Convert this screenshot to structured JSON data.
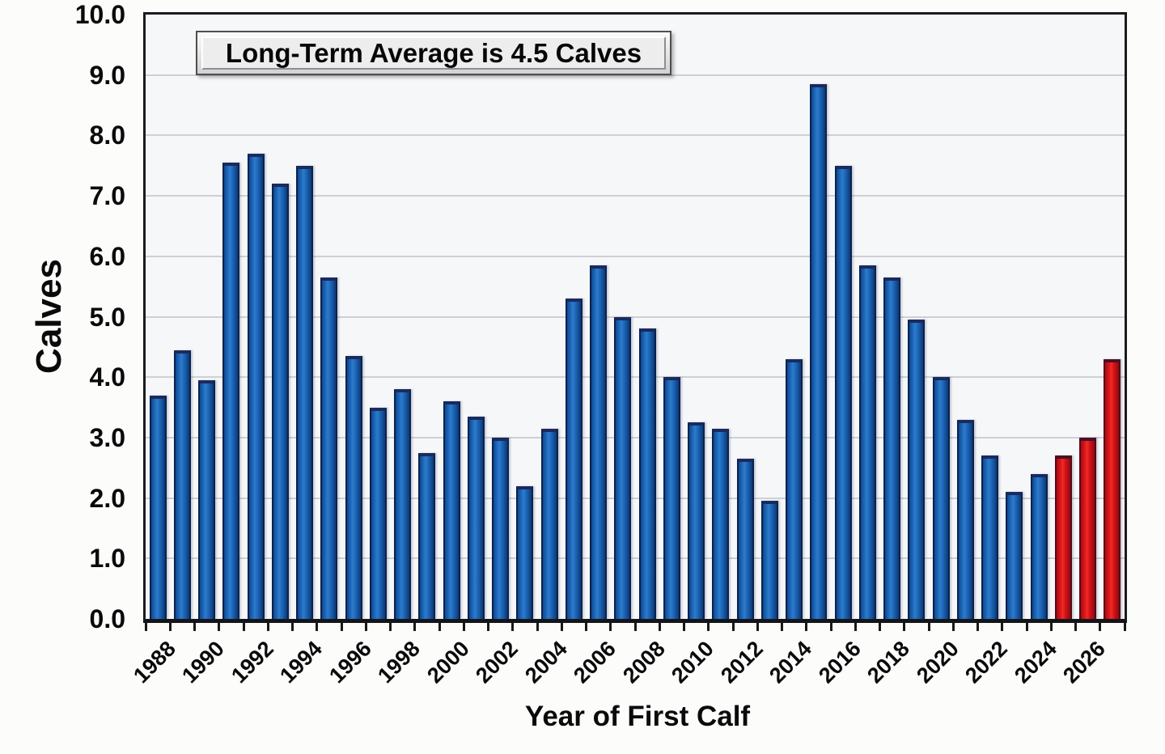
{
  "chart_data": {
    "type": "bar",
    "annotation": "Long-Term Average is 4.5 Calves",
    "xlabel": "Year of First Calf",
    "ylabel": "Calves",
    "ylim": [
      0,
      10
    ],
    "grid": true,
    "legend": "none",
    "y_ticks": [
      "10.0",
      "9.0",
      "8.0",
      "7.0",
      "6.0",
      "5.0",
      "4.0",
      "3.0",
      "2.0",
      "1.0",
      "0.0"
    ],
    "x_tick_labels": [
      "1988",
      "1990",
      "1992",
      "1994",
      "1996",
      "1998",
      "2000",
      "2002",
      "2004",
      "2006",
      "2008",
      "2010",
      "2012",
      "2014",
      "2016",
      "2018",
      "2020",
      "2022",
      "2024",
      "2026"
    ],
    "years": [
      1988,
      1989,
      1990,
      1991,
      1992,
      1993,
      1994,
      1995,
      1996,
      1997,
      1998,
      1999,
      2000,
      2001,
      2002,
      2003,
      2004,
      2005,
      2006,
      2007,
      2008,
      2009,
      2010,
      2011,
      2012,
      2013,
      2014,
      2015,
      2016,
      2017,
      2018,
      2019,
      2020,
      2021,
      2022,
      2023,
      2024,
      2025,
      2026,
      2027
    ],
    "values": [
      3.7,
      4.45,
      3.95,
      7.55,
      7.7,
      7.2,
      7.5,
      5.65,
      4.35,
      3.5,
      3.8,
      2.75,
      3.6,
      3.35,
      3.0,
      2.2,
      3.15,
      5.3,
      5.85,
      5.0,
      4.8,
      4.0,
      3.25,
      3.15,
      2.65,
      1.95,
      4.3,
      8.85,
      7.5,
      5.85,
      5.65,
      4.95,
      4.0,
      3.3,
      2.7,
      2.1,
      2.4,
      2.7,
      3.0,
      4.3
    ],
    "red_years": [
      2025,
      2026,
      2027
    ],
    "colors": {
      "bar_blue": "#1b64b6",
      "bar_blue_edge": "#0a2250",
      "bar_red": "#d81318",
      "bar_red_edge": "#57081a",
      "gridline": "#cdd0d5",
      "axis": "#1a1b1e",
      "plot_background": "#f6f7f9",
      "page_background": "#fcfcfb",
      "text": "#0a0a0b"
    }
  }
}
